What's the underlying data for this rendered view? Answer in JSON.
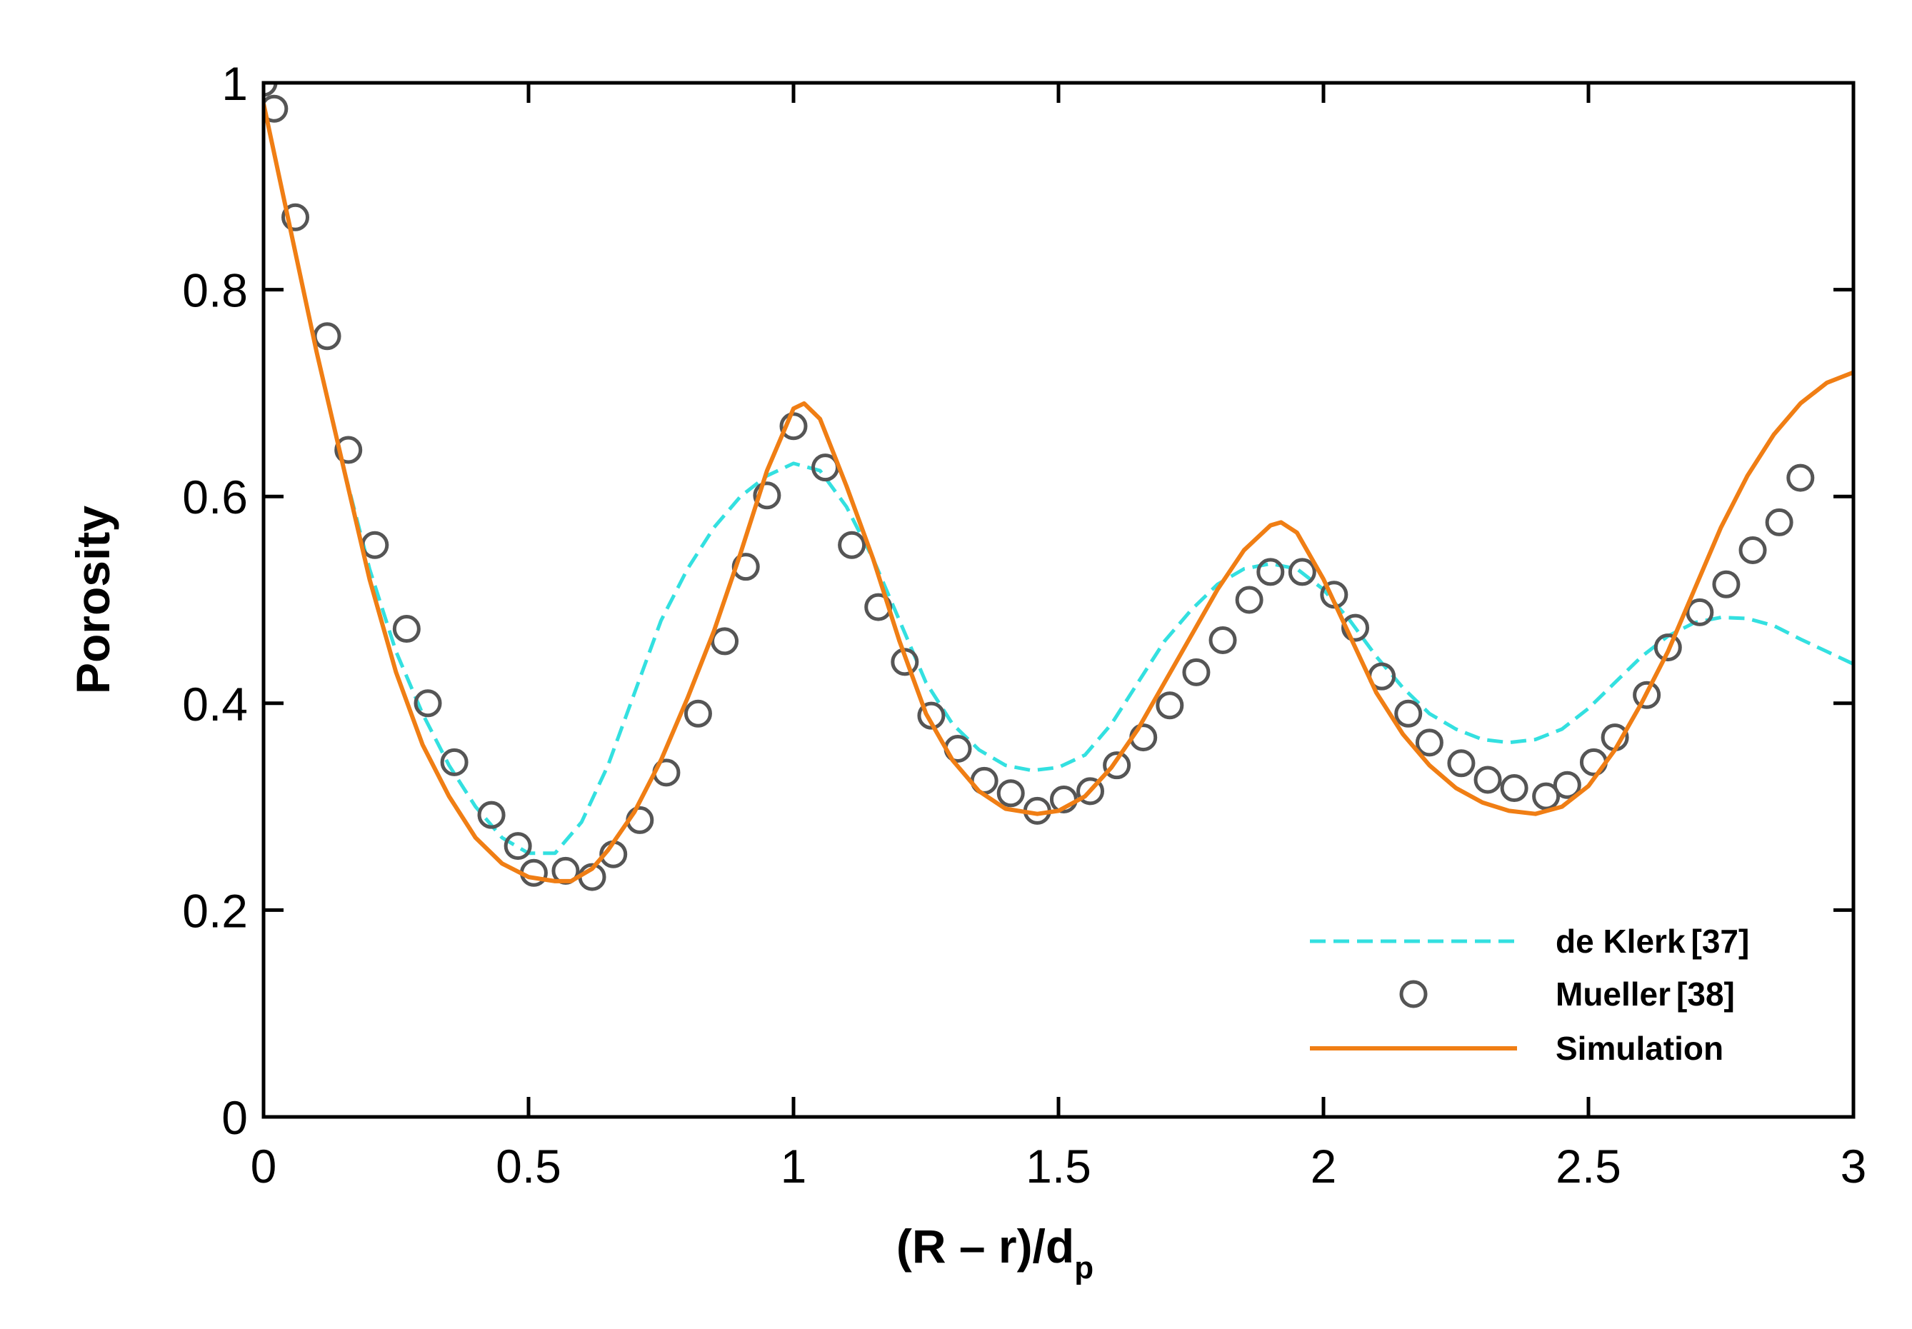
{
  "chart_data": {
    "type": "line",
    "xlabel": {
      "main": "(R – r)/d",
      "sub": "p"
    },
    "ylabel": "Porosity",
    "xlim": [
      0,
      3
    ],
    "ylim": [
      0,
      1
    ],
    "x_ticks": [
      0,
      0.5,
      1,
      1.5,
      2,
      2.5,
      3
    ],
    "x_tick_labels": [
      "0",
      "0.5",
      "1",
      "1.5",
      "2",
      "2.5",
      "3"
    ],
    "y_ticks": [
      0,
      0.2,
      0.4,
      0.6,
      0.8,
      1
    ],
    "y_tick_labels": [
      "0",
      "0.2",
      "0.4",
      "0.6",
      "0.8",
      "1"
    ],
    "grid": false,
    "legend_position": "bottom-right",
    "series": [
      {
        "name": "de Klerk [37]",
        "legend_label": "de Klerk",
        "legend_ref": "[37]",
        "style": "dashed",
        "color": "#33E0E0",
        "x": [
          0,
          0.05,
          0.1,
          0.15,
          0.2,
          0.25,
          0.3,
          0.35,
          0.4,
          0.45,
          0.5,
          0.55,
          0.6,
          0.65,
          0.7,
          0.75,
          0.8,
          0.85,
          0.9,
          0.95,
          1.0,
          1.05,
          1.1,
          1.15,
          1.2,
          1.25,
          1.3,
          1.35,
          1.4,
          1.45,
          1.5,
          1.55,
          1.6,
          1.65,
          1.7,
          1.75,
          1.8,
          1.85,
          1.9,
          1.95,
          2.0,
          2.05,
          2.1,
          2.15,
          2.2,
          2.25,
          2.3,
          2.35,
          2.4,
          2.45,
          2.5,
          2.55,
          2.6,
          2.65,
          2.7,
          2.75,
          2.8,
          2.85,
          2.9,
          2.95,
          3.0
        ],
        "y": [
          0.98,
          0.86,
          0.74,
          0.63,
          0.53,
          0.45,
          0.39,
          0.34,
          0.3,
          0.27,
          0.255,
          0.255,
          0.285,
          0.34,
          0.41,
          0.48,
          0.53,
          0.57,
          0.6,
          0.62,
          0.632,
          0.625,
          0.59,
          0.54,
          0.48,
          0.42,
          0.38,
          0.355,
          0.34,
          0.335,
          0.338,
          0.35,
          0.38,
          0.42,
          0.46,
          0.49,
          0.515,
          0.53,
          0.535,
          0.53,
          0.51,
          0.48,
          0.445,
          0.415,
          0.39,
          0.375,
          0.365,
          0.362,
          0.365,
          0.375,
          0.395,
          0.42,
          0.445,
          0.465,
          0.478,
          0.483,
          0.482,
          0.475,
          0.462,
          0.45,
          0.438
        ]
      },
      {
        "name": "Mueller [38]",
        "legend_label": "Mueller",
        "legend_ref": "[38]",
        "style": "markers",
        "color": "#555555",
        "x": [
          0,
          0.02,
          0.06,
          0.12,
          0.16,
          0.21,
          0.27,
          0.31,
          0.36,
          0.43,
          0.48,
          0.51,
          0.57,
          0.62,
          0.66,
          0.71,
          0.76,
          0.82,
          0.87,
          0.91,
          0.95,
          1.0,
          1.06,
          1.11,
          1.16,
          1.21,
          1.26,
          1.31,
          1.36,
          1.41,
          1.46,
          1.51,
          1.56,
          1.61,
          1.66,
          1.71,
          1.76,
          1.81,
          1.86,
          1.9,
          1.96,
          2.02,
          2.06,
          2.11,
          2.16,
          2.2,
          2.26,
          2.31,
          2.36,
          2.42,
          2.46,
          2.51,
          2.55,
          2.61,
          2.65,
          2.71,
          2.76,
          2.81,
          2.86,
          2.9
        ],
        "y": [
          1.0,
          0.975,
          0.87,
          0.755,
          0.645,
          0.553,
          0.472,
          0.4,
          0.343,
          0.292,
          0.262,
          0.236,
          0.238,
          0.232,
          0.254,
          0.287,
          0.333,
          0.39,
          0.46,
          0.532,
          0.601,
          0.668,
          0.628,
          0.553,
          0.493,
          0.44,
          0.388,
          0.356,
          0.325,
          0.313,
          0.296,
          0.307,
          0.315,
          0.34,
          0.367,
          0.398,
          0.43,
          0.461,
          0.5,
          0.527,
          0.527,
          0.505,
          0.473,
          0.426,
          0.39,
          0.362,
          0.342,
          0.326,
          0.318,
          0.31,
          0.321,
          0.343,
          0.367,
          0.408,
          0.454,
          0.488,
          0.515,
          0.548,
          0.575,
          0.618
        ]
      },
      {
        "name": "Simulation",
        "legend_label": "Simulation",
        "legend_ref": "",
        "style": "solid",
        "color": "#F07E14",
        "x": [
          0,
          0.05,
          0.1,
          0.15,
          0.2,
          0.25,
          0.3,
          0.35,
          0.4,
          0.45,
          0.5,
          0.55,
          0.58,
          0.62,
          0.65,
          0.7,
          0.75,
          0.8,
          0.85,
          0.9,
          0.95,
          1.0,
          1.02,
          1.05,
          1.1,
          1.15,
          1.2,
          1.25,
          1.3,
          1.35,
          1.4,
          1.46,
          1.5,
          1.55,
          1.6,
          1.65,
          1.7,
          1.75,
          1.8,
          1.85,
          1.9,
          1.92,
          1.95,
          2.0,
          2.05,
          2.1,
          2.15,
          2.2,
          2.25,
          2.3,
          2.35,
          2.4,
          2.45,
          2.5,
          2.55,
          2.6,
          2.65,
          2.7,
          2.75,
          2.8,
          2.85,
          2.9,
          2.95,
          3.0
        ],
        "y": [
          0.98,
          0.86,
          0.74,
          0.63,
          0.52,
          0.43,
          0.36,
          0.31,
          0.27,
          0.245,
          0.232,
          0.228,
          0.228,
          0.24,
          0.258,
          0.295,
          0.345,
          0.405,
          0.47,
          0.545,
          0.625,
          0.685,
          0.69,
          0.675,
          0.61,
          0.54,
          0.46,
          0.39,
          0.345,
          0.315,
          0.298,
          0.293,
          0.296,
          0.31,
          0.338,
          0.375,
          0.42,
          0.465,
          0.51,
          0.548,
          0.572,
          0.575,
          0.565,
          0.52,
          0.465,
          0.41,
          0.37,
          0.34,
          0.318,
          0.304,
          0.296,
          0.293,
          0.3,
          0.32,
          0.355,
          0.4,
          0.45,
          0.51,
          0.57,
          0.62,
          0.66,
          0.69,
          0.71,
          0.72
        ]
      }
    ]
  }
}
